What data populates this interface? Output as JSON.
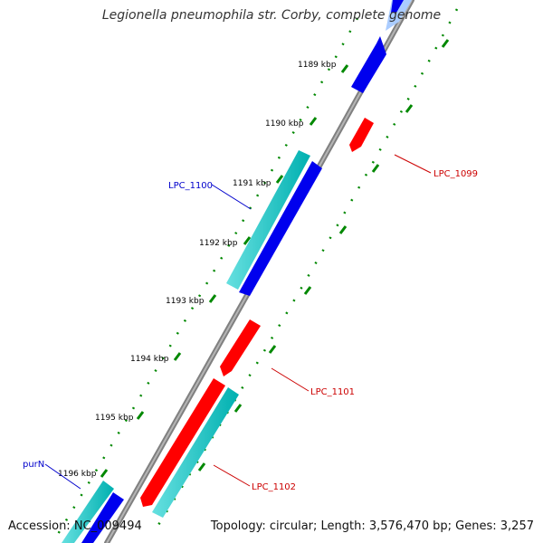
{
  "title": "Legionella pneumophila str. Corby, complete genome",
  "accession": "Accession: NC_009494",
  "summary": "Topology: circular; Length: 3,576,470 bp; Genes: 3,257",
  "colors": {
    "backbone": "#808080",
    "tick_dots": "#008800",
    "gene_forward": "#0000ee",
    "gene_reverse": "#ff0000",
    "gene_cyan": "#00cccc",
    "gene_light": "#aaccff",
    "label_blue": "#0000cc",
    "label_red": "#cc0000"
  },
  "kbp_labels": [
    "1189 kbp",
    "1190 kbp",
    "1191 kbp",
    "1192 kbp",
    "1193 kbp",
    "1194 kbp",
    "1195 kbp",
    "1196 kbp"
  ],
  "gene_labels": {
    "lpc_1099": "LPC_1099",
    "lpc_1100": "LPC_1100",
    "lpc_1101": "LPC_1101",
    "lpc_1102": "LPC_1102",
    "purn": "purN"
  }
}
